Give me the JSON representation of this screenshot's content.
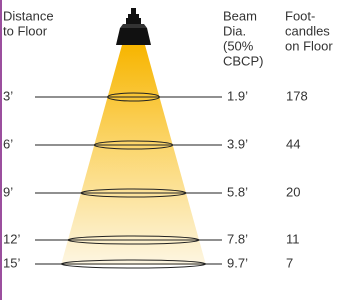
{
  "headers": {
    "distance": [
      "Distance",
      "to Floor"
    ],
    "beam": [
      "Beam",
      "Dia.",
      "(50%",
      "CBCP)"
    ],
    "footcandles": [
      "Foot-",
      "candles",
      "on Floor"
    ]
  },
  "rows": [
    {
      "distance": "3’",
      "beam": "1.9’",
      "footcandles": "178"
    },
    {
      "distance": "6’",
      "beam": "3.9’",
      "footcandles": "44"
    },
    {
      "distance": "9’",
      "beam": "5.8’",
      "footcandles": "20"
    },
    {
      "distance": "12’",
      "beam": "7.8’",
      "footcandles": "11"
    },
    {
      "distance": "15’",
      "beam": "9.7’",
      "footcandles": "7"
    }
  ]
}
